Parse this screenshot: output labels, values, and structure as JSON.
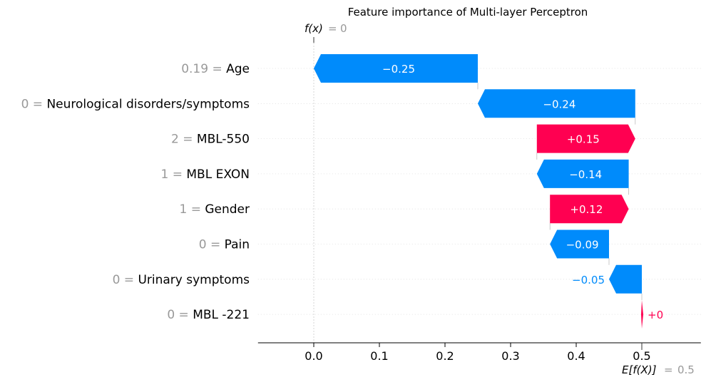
{
  "chart_data": {
    "type": "waterfall",
    "title": "Feature importance of Multi-layer Perceptron",
    "fx_label": "f(x)",
    "fx_value": "0",
    "base_label": "E[f(X)]",
    "base_value": "0.5",
    "xlim": [
      -0.085,
      0.59
    ],
    "x_ticks": [
      "0.0",
      "0.1",
      "0.2",
      "0.3",
      "0.4",
      "0.5"
    ],
    "features": [
      {
        "value": "0.19",
        "name": "Age",
        "contribution": -0.25,
        "label": "−0.25"
      },
      {
        "value": "0",
        "name": "Neurological disorders/symptoms",
        "contribution": -0.24,
        "label": "−0.24"
      },
      {
        "value": "2",
        "name": "MBL-550",
        "contribution": 0.15,
        "label": "+0.15"
      },
      {
        "value": "1",
        "name": "MBL EXON",
        "contribution": -0.14,
        "label": "−0.14"
      },
      {
        "value": "1",
        "name": "Gender",
        "contribution": 0.12,
        "label": "+0.12"
      },
      {
        "value": "0",
        "name": "Pain",
        "contribution": -0.09,
        "label": "−0.09"
      },
      {
        "value": "0",
        "name": "Urinary symptoms",
        "contribution": -0.05,
        "label": "−0.05"
      },
      {
        "value": "0",
        "name": "MBL -221",
        "contribution": 0.0,
        "label": "+0"
      }
    ],
    "base": 0.5,
    "colors": {
      "positive": "#ff0051",
      "negative": "#008bfb",
      "value_gray": "#999999",
      "text": "#000000"
    }
  }
}
